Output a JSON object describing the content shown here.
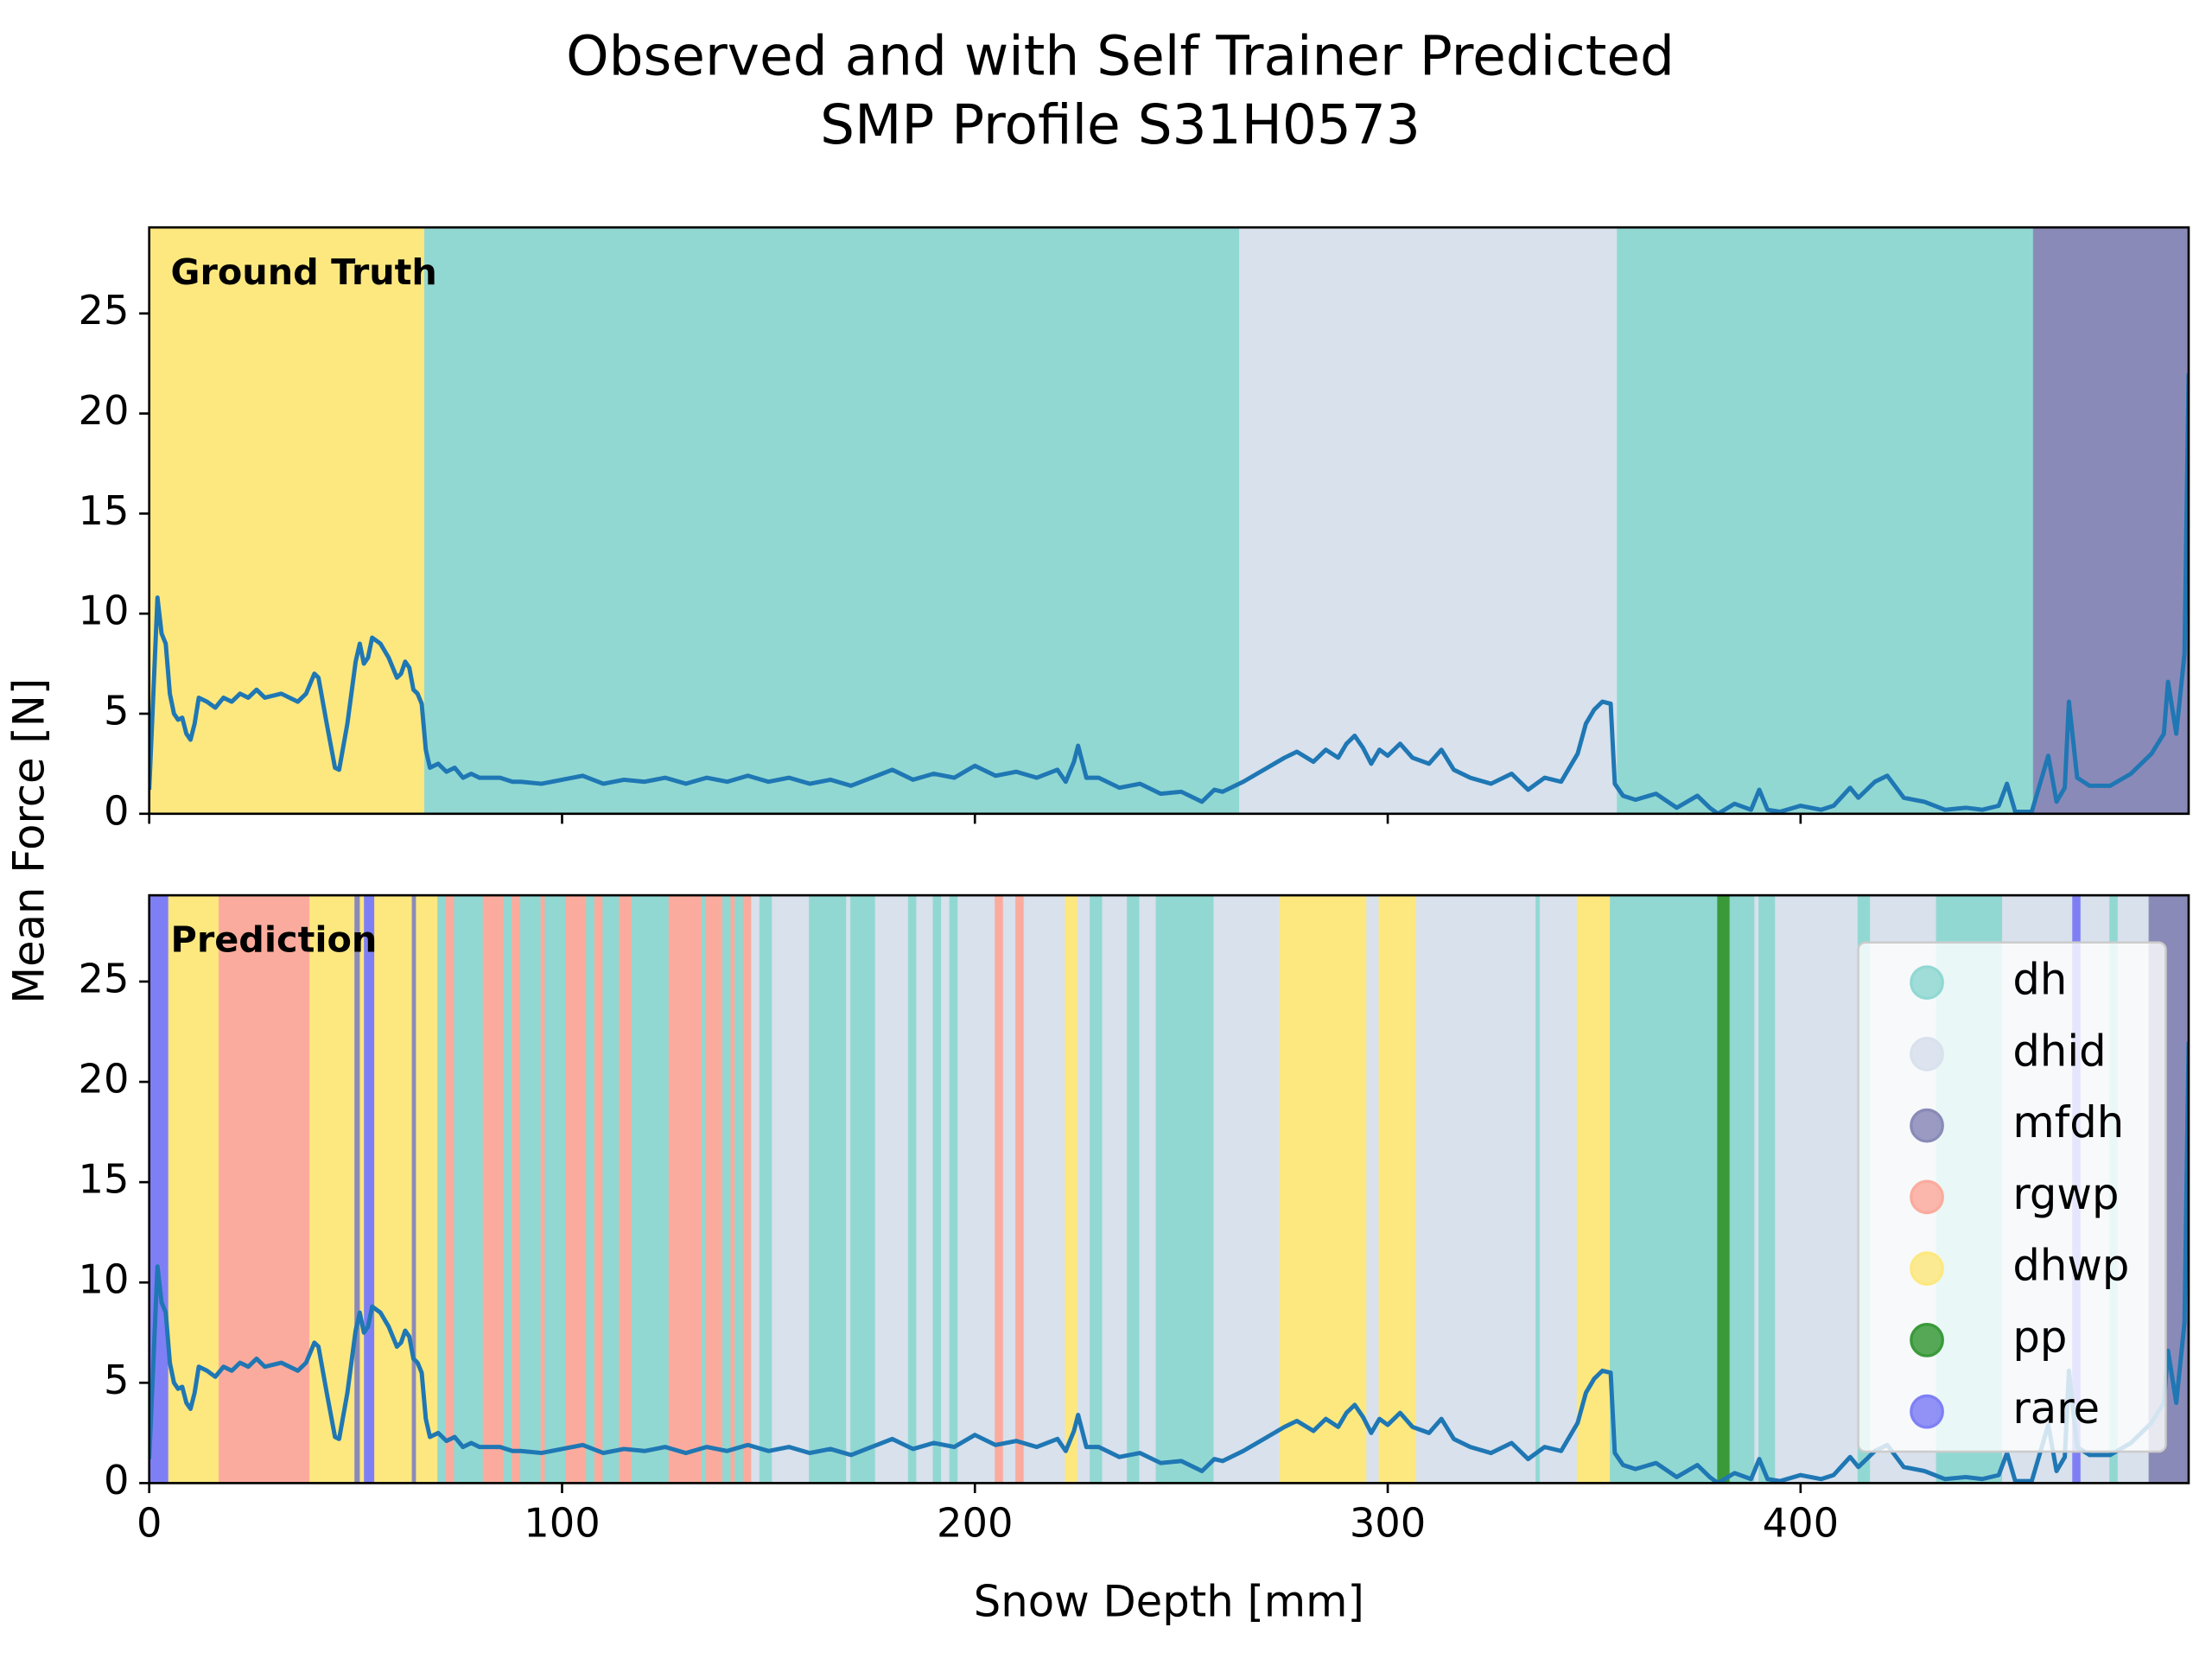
{
  "title": [
    "Observed and with Self Trainer Predicted",
    "SMP Profile S31H0573"
  ],
  "xlabel": "Snow Depth [mm]",
  "ylabel": "Mean Force [N]",
  "classes": [
    {
      "name": "dh",
      "color": "#91d8d2"
    },
    {
      "name": "dhid",
      "color": "#d8e1ec"
    },
    {
      "name": "mfdh",
      "color": "#8a8ab8"
    },
    {
      "name": "rgwp",
      "color": "#fbab9d"
    },
    {
      "name": "dhwp",
      "color": "#fde87f"
    },
    {
      "name": "pp",
      "color": "#3a9a3a"
    },
    {
      "name": "rare",
      "color": "#7f7ff5"
    }
  ],
  "chart_data": [
    {
      "type": "line",
      "annotation": "Ground Truth",
      "xlim": [
        0,
        494
      ],
      "ylim": [
        0,
        29.3
      ],
      "xticks": [
        0,
        100,
        200,
        300,
        400
      ],
      "yticks": [
        0,
        5,
        10,
        15,
        20,
        25
      ],
      "show_xtick_labels": false,
      "layer_edges": [
        0,
        66.8,
        264.2,
        355.7,
        456.5,
        494
      ],
      "layer_classes": [
        "dhwp",
        "dh",
        "dhid",
        "dh",
        "mfdh"
      ],
      "x": [
        0,
        2,
        3,
        4,
        5,
        6,
        7,
        8,
        9,
        10,
        11,
        12,
        14,
        16,
        18,
        20,
        22,
        24,
        26,
        28,
        30,
        32,
        34,
        36,
        38,
        40,
        41,
        43,
        45,
        46,
        48,
        50,
        51,
        52,
        53,
        54,
        56,
        58,
        60,
        61,
        62,
        63,
        64,
        65,
        66,
        67,
        68,
        70,
        72,
        74,
        76,
        78,
        80,
        85,
        88,
        90,
        95,
        100,
        105,
        110,
        115,
        120,
        125,
        130,
        135,
        140,
        145,
        150,
        155,
        160,
        165,
        170,
        175,
        180,
        185,
        190,
        195,
        200,
        205,
        210,
        215,
        220,
        222,
        224,
        225,
        227,
        230,
        235,
        240,
        245,
        250,
        255,
        258,
        260,
        265,
        270,
        275,
        278,
        282,
        285,
        288,
        290,
        292,
        294,
        296,
        298,
        300,
        303,
        306,
        310,
        313,
        316,
        320,
        325,
        330,
        334,
        338,
        342,
        346,
        348,
        350,
        352,
        354,
        355,
        357,
        360,
        365,
        370,
        375,
        378,
        380,
        384,
        388,
        390,
        392,
        395,
        400,
        405,
        408,
        412,
        414,
        418,
        421,
        425,
        430,
        435,
        440,
        444,
        448,
        450,
        452,
        456,
        458,
        460,
        462,
        464,
        465,
        467,
        470,
        475,
        480,
        485,
        488,
        489,
        491,
        493,
        494
      ],
      "series": [
        {
          "color": "#1f77b4",
          "values": [
            1.2,
            10.8,
            9,
            8.5,
            6,
            5,
            4.7,
            4.8,
            4,
            3.7,
            4.5,
            5.8,
            5.6,
            5.3,
            5.8,
            5.6,
            6,
            5.8,
            6.2,
            5.8,
            5.9,
            6,
            5.8,
            5.6,
            6,
            7,
            6.8,
            4.5,
            2.3,
            2.2,
            4.5,
            7.6,
            8.5,
            7.5,
            7.8,
            8.8,
            8.5,
            7.8,
            6.8,
            7,
            7.6,
            7.3,
            6.2,
            6,
            5.5,
            3.2,
            2.3,
            2.5,
            2.1,
            2.3,
            1.8,
            2,
            1.8,
            1.8,
            1.6,
            1.6,
            1.5,
            1.7,
            1.9,
            1.5,
            1.7,
            1.6,
            1.8,
            1.5,
            1.8,
            1.6,
            1.9,
            1.6,
            1.8,
            1.5,
            1.7,
            1.4,
            1.8,
            2.2,
            1.7,
            2,
            1.8,
            2.4,
            1.9,
            2.1,
            1.8,
            2.2,
            1.6,
            2.6,
            3.4,
            1.8,
            1.8,
            1.3,
            1.5,
            1,
            1.1,
            0.6,
            1.2,
            1.1,
            1.6,
            2.2,
            2.8,
            3.1,
            2.6,
            3.2,
            2.8,
            3.5,
            3.9,
            3.3,
            2.5,
            3.2,
            2.9,
            3.5,
            2.8,
            2.5,
            3.2,
            2.2,
            1.8,
            1.5,
            2,
            1.2,
            1.8,
            1.6,
            3,
            4.5,
            5.2,
            5.6,
            5.5,
            1.5,
            0.9,
            0.7,
            1,
            0.3,
            0.9,
            0.3,
            0,
            0.5,
            0.2,
            1.2,
            0.2,
            0.1,
            0.4,
            0.2,
            0.4,
            1.3,
            0.8,
            1.6,
            1.9,
            0.8,
            0.6,
            0.2,
            0.3,
            0.2,
            0.4,
            1.5,
            0.1,
            0.1,
            1.5,
            2.9,
            0.6,
            1.3,
            5.6,
            1.8,
            1.4,
            1.4,
            2,
            3,
            4,
            6.6,
            4,
            8,
            22
          ]
        }
      ]
    },
    {
      "type": "line",
      "annotation": "Prediction",
      "xlim": [
        0,
        494
      ],
      "ylim": [
        0,
        29.3
      ],
      "xticks": [
        0,
        100,
        200,
        300,
        400
      ],
      "yticks": [
        0,
        5,
        10,
        15,
        20,
        25
      ],
      "show_xtick_labels": true,
      "legend": "upper right",
      "layer_edges": [
        0,
        4.8,
        17,
        39,
        49.9,
        51.2,
        52.2,
        54.7,
        63.8,
        64.8,
        70,
        72,
        74,
        81,
        86,
        88,
        90,
        95,
        96,
        101,
        106,
        108,
        110,
        114,
        117,
        126,
        134,
        135,
        139,
        141,
        142,
        144,
        146,
        148,
        151,
        160,
        169,
        170,
        176,
        184,
        186,
        190,
        192,
        194,
        196,
        205,
        207,
        210,
        212,
        222,
        225,
        228,
        231,
        237,
        240,
        244,
        258,
        274,
        295,
        298,
        307,
        336,
        337,
        346,
        354,
        380,
        383,
        389,
        390,
        394,
        414,
        417,
        433,
        449,
        466,
        468,
        475,
        477,
        484.5,
        494
      ],
      "layer_classes": [
        "rare",
        "dhwp",
        "rgwp",
        "dhwp",
        "mfdh",
        "dhwp",
        "rare",
        "dhwp",
        "mfdh",
        "dhwp",
        "dh",
        "rgwp",
        "dh",
        "rgwp",
        "dh",
        "rgwp",
        "dh",
        "rgwp",
        "dh",
        "rgwp",
        "dh",
        "rgwp",
        "dh",
        "rgwp",
        "dh",
        "rgwp",
        "dh",
        "rgwp",
        "dh",
        "rgwp",
        "dh",
        "rgwp",
        "dhid",
        "dh",
        "dhid",
        "dh",
        "dhid",
        "dh",
        "dhid",
        "dh",
        "dhid",
        "dh",
        "dhid",
        "dh",
        "dhid",
        "rgwp",
        "dhid",
        "rgwp",
        "dhid",
        "dhwp",
        "dhid",
        "dh",
        "dhid",
        "dh",
        "dhid",
        "dh",
        "dhid",
        "dhwp",
        "dhid",
        "dhwp",
        "dhid",
        "dh",
        "dhid",
        "dhwp",
        "dh",
        "pp",
        "dh",
        "dhid",
        "dh",
        "dhid",
        "dh",
        "dhid",
        "dh",
        "dhid",
        "rare",
        "dhid",
        "dh",
        "dhid",
        "mfdh"
      ],
      "x": [
        0,
        2,
        3,
        4,
        5,
        6,
        7,
        8,
        9,
        10,
        11,
        12,
        14,
        16,
        18,
        20,
        22,
        24,
        26,
        28,
        30,
        32,
        34,
        36,
        38,
        40,
        41,
        43,
        45,
        46,
        48,
        50,
        51,
        52,
        53,
        54,
        56,
        58,
        60,
        61,
        62,
        63,
        64,
        65,
        66,
        67,
        68,
        70,
        72,
        74,
        76,
        78,
        80,
        85,
        88,
        90,
        95,
        100,
        105,
        110,
        115,
        120,
        125,
        130,
        135,
        140,
        145,
        150,
        155,
        160,
        165,
        170,
        175,
        180,
        185,
        190,
        195,
        200,
        205,
        210,
        215,
        220,
        222,
        224,
        225,
        227,
        230,
        235,
        240,
        245,
        250,
        255,
        258,
        260,
        265,
        270,
        275,
        278,
        282,
        285,
        288,
        290,
        292,
        294,
        296,
        298,
        300,
        303,
        306,
        310,
        313,
        316,
        320,
        325,
        330,
        334,
        338,
        342,
        346,
        348,
        350,
        352,
        354,
        355,
        357,
        360,
        365,
        370,
        375,
        378,
        380,
        384,
        388,
        390,
        392,
        395,
        400,
        405,
        408,
        412,
        414,
        418,
        421,
        425,
        430,
        435,
        440,
        444,
        448,
        450,
        452,
        456,
        458,
        460,
        462,
        464,
        465,
        467,
        470,
        475,
        480,
        485,
        488,
        489,
        491,
        493,
        494
      ],
      "series": [
        {
          "color": "#1f77b4",
          "values": [
            1.2,
            10.8,
            9,
            8.5,
            6,
            5,
            4.7,
            4.8,
            4,
            3.7,
            4.5,
            5.8,
            5.6,
            5.3,
            5.8,
            5.6,
            6,
            5.8,
            6.2,
            5.8,
            5.9,
            6,
            5.8,
            5.6,
            6,
            7,
            6.8,
            4.5,
            2.3,
            2.2,
            4.5,
            7.6,
            8.5,
            7.5,
            7.8,
            8.8,
            8.5,
            7.8,
            6.8,
            7,
            7.6,
            7.3,
            6.2,
            6,
            5.5,
            3.2,
            2.3,
            2.5,
            2.1,
            2.3,
            1.8,
            2,
            1.8,
            1.8,
            1.6,
            1.6,
            1.5,
            1.7,
            1.9,
            1.5,
            1.7,
            1.6,
            1.8,
            1.5,
            1.8,
            1.6,
            1.9,
            1.6,
            1.8,
            1.5,
            1.7,
            1.4,
            1.8,
            2.2,
            1.7,
            2,
            1.8,
            2.4,
            1.9,
            2.1,
            1.8,
            2.2,
            1.6,
            2.6,
            3.4,
            1.8,
            1.8,
            1.3,
            1.5,
            1,
            1.1,
            0.6,
            1.2,
            1.1,
            1.6,
            2.2,
            2.8,
            3.1,
            2.6,
            3.2,
            2.8,
            3.5,
            3.9,
            3.3,
            2.5,
            3.2,
            2.9,
            3.5,
            2.8,
            2.5,
            3.2,
            2.2,
            1.8,
            1.5,
            2,
            1.2,
            1.8,
            1.6,
            3,
            4.5,
            5.2,
            5.6,
            5.5,
            1.5,
            0.9,
            0.7,
            1,
            0.3,
            0.9,
            0.3,
            0,
            0.5,
            0.2,
            1.2,
            0.2,
            0.1,
            0.4,
            0.2,
            0.4,
            1.3,
            0.8,
            1.6,
            1.9,
            0.8,
            0.6,
            0.2,
            0.3,
            0.2,
            0.4,
            1.5,
            0.1,
            0.1,
            1.5,
            2.9,
            0.6,
            1.3,
            5.6,
            1.8,
            1.4,
            1.4,
            2,
            3,
            4,
            6.6,
            4,
            8,
            22
          ]
        }
      ]
    }
  ]
}
